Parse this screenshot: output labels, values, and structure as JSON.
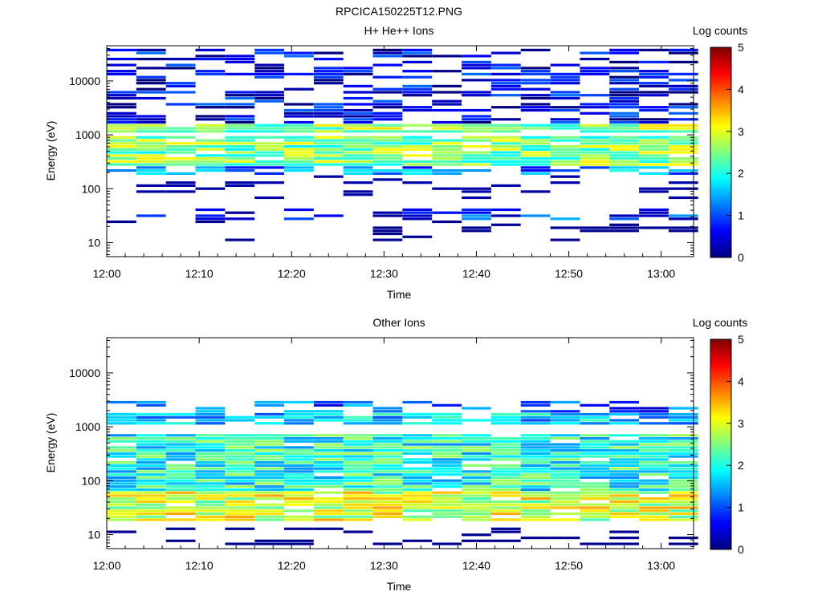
{
  "figure_title": "RPCICA150225T12.PNG",
  "colors": {
    "colormap": [
      "#00007f",
      "#0000ff",
      "#007fff",
      "#00ffff",
      "#7fff7f",
      "#ffff00",
      "#ff7f00",
      "#ff0000",
      "#7f0000"
    ],
    "background": "#ffffff",
    "axes": "#000000"
  },
  "chart_data": [
    {
      "type": "heatmap",
      "title": "H+ He++ Ions",
      "xlabel": "Time",
      "ylabel": "Energy (eV)",
      "x_ticks": [
        "12:00",
        "12:10",
        "12:20",
        "12:30",
        "12:40",
        "12:50",
        "13:00"
      ],
      "xlim_minutes": [
        0,
        63.5
      ],
      "ylim": [
        5.5,
        45000
      ],
      "y_scale": "log",
      "y_ticks": [
        "10",
        "100",
        "1000",
        "10000"
      ],
      "colorbar": {
        "label": "Log counts",
        "ticks": [
          "0",
          "1",
          "2",
          "3",
          "4",
          "5"
        ],
        "range": [
          0,
          5
        ]
      },
      "time_bins_minutes": [
        0,
        3.2,
        6.4,
        9.6,
        12.8,
        16,
        19.2,
        22.4,
        25.6,
        28.8,
        32,
        35.2,
        38.4,
        41.6,
        44.8,
        48,
        51.2,
        54.4,
        57.6,
        60.8
      ],
      "bands": [
        {
          "emin": 1100,
          "emax": 1600,
          "level": 2.6
        },
        {
          "emin": 250,
          "emax": 900,
          "level": 2.5
        },
        {
          "emin": 180,
          "emax": 250,
          "level": 1.3
        },
        {
          "emin": 1600,
          "emax": 40000,
          "level": 0.5
        },
        {
          "emin": 25,
          "emax": 45,
          "level": 0.8
        }
      ],
      "sparse_levels": [
        {
          "emin": 60,
          "emax": 180,
          "level": 0.2
        },
        {
          "emin": 10,
          "emax": 25,
          "level": 0.1
        }
      ]
    },
    {
      "type": "heatmap",
      "title": "Other Ions",
      "xlabel": "Time",
      "ylabel": "Energy (eV)",
      "x_ticks": [
        "12:00",
        "12:10",
        "12:20",
        "12:30",
        "12:40",
        "12:50",
        "13:00"
      ],
      "xlim_minutes": [
        0,
        63.5
      ],
      "ylim": [
        5.5,
        45000
      ],
      "y_scale": "log",
      "y_ticks": [
        "10",
        "100",
        "1000",
        "10000"
      ],
      "colorbar": {
        "label": "Log counts",
        "ticks": [
          "0",
          "1",
          "2",
          "3",
          "4",
          "5"
        ],
        "range": [
          0,
          5
        ]
      },
      "time_bins_minutes": [
        0,
        3.2,
        6.4,
        9.6,
        12.8,
        16,
        19.2,
        22.4,
        25.6,
        28.8,
        32,
        35.2,
        38.4,
        41.6,
        44.8,
        48,
        51.2,
        54.4,
        57.6,
        60.8
      ],
      "bands": [
        {
          "emin": 18,
          "emax": 60,
          "level": 2.9
        },
        {
          "emin": 60,
          "emax": 700,
          "level": 2.0
        },
        {
          "emin": 1100,
          "emax": 1800,
          "level": 1.6
        },
        {
          "emin": 1800,
          "emax": 3000,
          "level": 1.0
        }
      ],
      "sparse_levels": [
        {
          "emin": 6,
          "emax": 16,
          "level": 0.1
        }
      ]
    }
  ]
}
